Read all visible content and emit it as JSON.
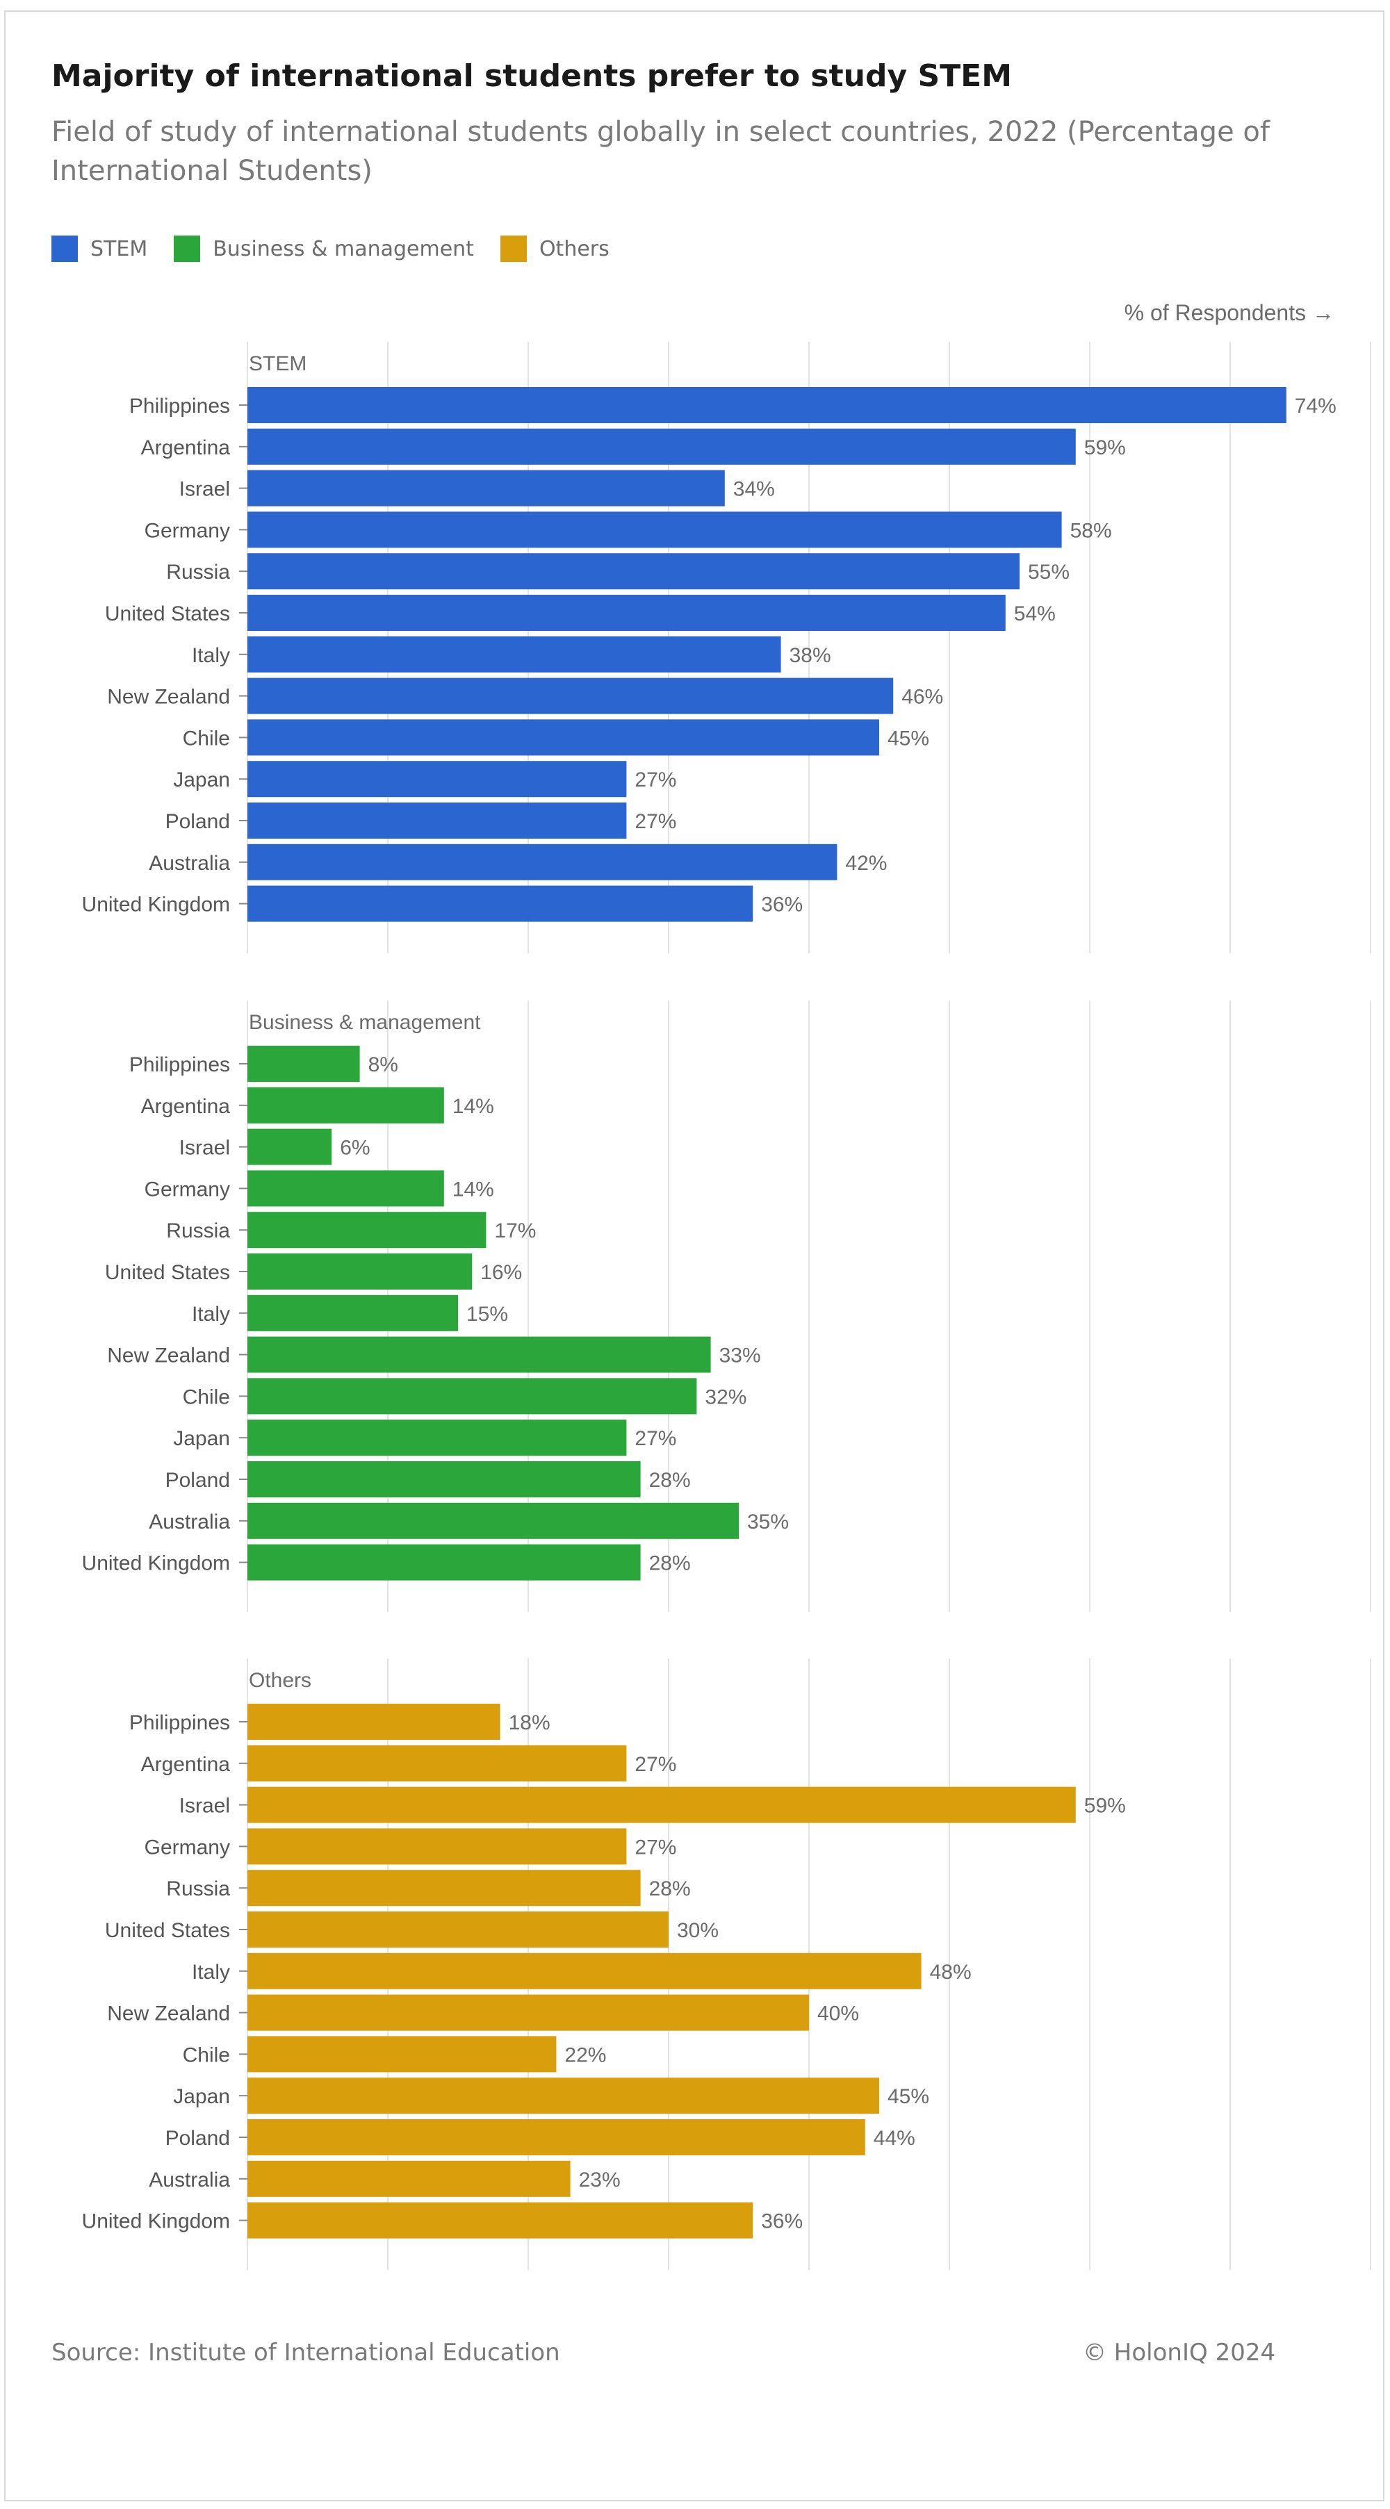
{
  "title": "Majority of international students prefer to study STEM",
  "subtitle": "Field of study of international students globally in select countries, 2022 (Percentage of International Students)",
  "legend": [
    {
      "label": "STEM",
      "color": "#2a65d0"
    },
    {
      "label": "Business & management",
      "color": "#2aa63a"
    },
    {
      "label": "Others",
      "color": "#d99e0b"
    }
  ],
  "axis_note": "% of Respondents →",
  "footer": {
    "source": "Source: Institute of International Education",
    "copyright": "© HolonIQ 2024"
  },
  "chart_data": {
    "type": "bar",
    "orientation": "horizontal",
    "categories": [
      "Philippines",
      "Argentina",
      "Israel",
      "Germany",
      "Russia",
      "United States",
      "Italy",
      "New Zealand",
      "Chile",
      "Japan",
      "Poland",
      "Australia",
      "United Kingdom"
    ],
    "xlabel": "% of Respondents",
    "xlim": [
      0,
      80
    ],
    "grid": true,
    "series": [
      {
        "name": "STEM",
        "color": "#2a65d0",
        "values": [
          74,
          59,
          34,
          58,
          55,
          54,
          38,
          46,
          45,
          27,
          27,
          42,
          36
        ]
      },
      {
        "name": "Business & management",
        "color": "#2aa63a",
        "values": [
          8,
          14,
          6,
          14,
          17,
          16,
          15,
          33,
          32,
          27,
          28,
          35,
          28
        ]
      },
      {
        "name": "Others",
        "color": "#d99e0b",
        "values": [
          18,
          27,
          59,
          27,
          28,
          30,
          48,
          40,
          22,
          45,
          44,
          23,
          36
        ]
      }
    ],
    "value_suffix": "%"
  }
}
